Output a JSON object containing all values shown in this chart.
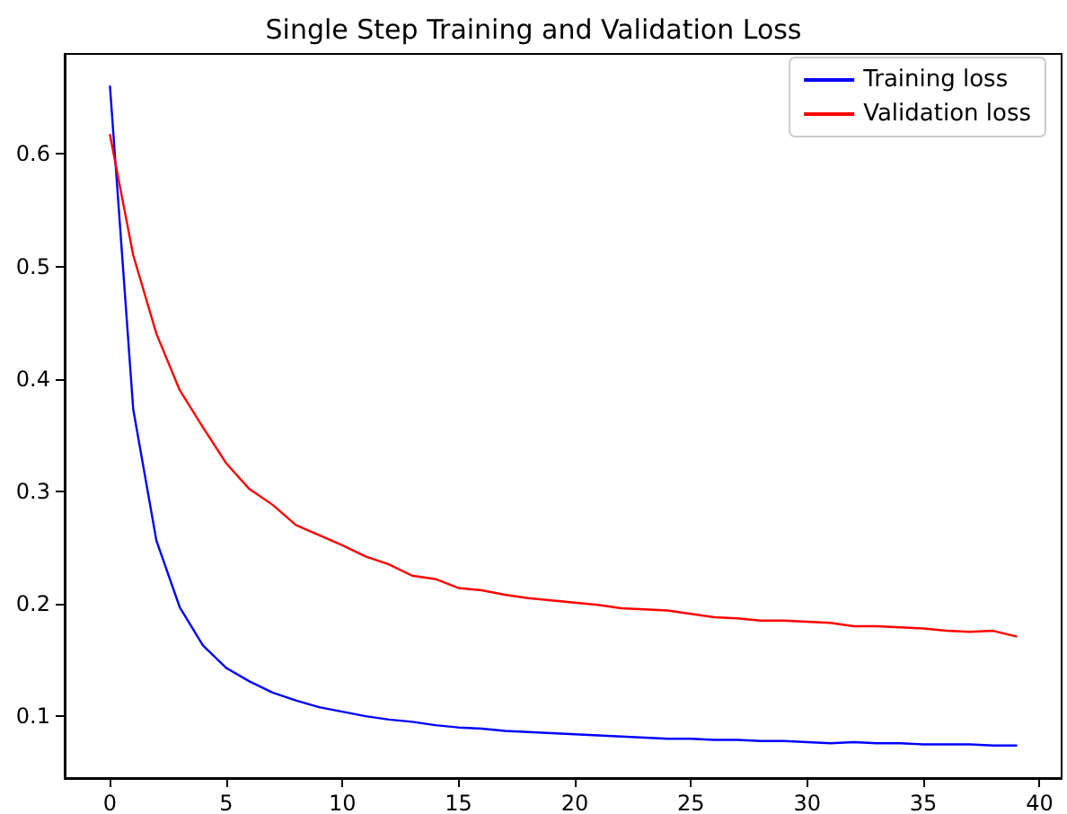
{
  "chart_data": {
    "type": "line",
    "title": "Single Step Training and Validation Loss",
    "x": [
      0,
      1,
      2,
      3,
      4,
      5,
      6,
      7,
      8,
      9,
      10,
      11,
      12,
      13,
      14,
      15,
      16,
      17,
      18,
      19,
      20,
      21,
      22,
      23,
      24,
      25,
      26,
      27,
      28,
      29,
      30,
      31,
      32,
      33,
      34,
      35,
      36,
      37,
      38,
      39
    ],
    "series": [
      {
        "name": "Training loss",
        "color": "#0000ff",
        "values": [
          0.66,
          0.373,
          0.256,
          0.197,
          0.163,
          0.143,
          0.131,
          0.121,
          0.114,
          0.108,
          0.104,
          0.1,
          0.097,
          0.095,
          0.092,
          0.09,
          0.089,
          0.087,
          0.086,
          0.085,
          0.084,
          0.083,
          0.082,
          0.081,
          0.08,
          0.08,
          0.079,
          0.079,
          0.078,
          0.078,
          0.077,
          0.076,
          0.077,
          0.076,
          0.076,
          0.075,
          0.075,
          0.075,
          0.074,
          0.074
        ]
      },
      {
        "name": "Validation loss",
        "color": "#ff0000",
        "values": [
          0.617,
          0.51,
          0.44,
          0.39,
          0.357,
          0.325,
          0.302,
          0.288,
          0.27,
          0.261,
          0.252,
          0.242,
          0.235,
          0.225,
          0.222,
          0.214,
          0.212,
          0.208,
          0.205,
          0.203,
          0.201,
          0.199,
          0.196,
          0.195,
          0.194,
          0.191,
          0.188,
          0.187,
          0.185,
          0.185,
          0.184,
          0.183,
          0.18,
          0.18,
          0.179,
          0.178,
          0.176,
          0.175,
          0.176,
          0.171
        ]
      }
    ],
    "xlim": [
      -1.95,
      40.95
    ],
    "xticks": [
      0,
      5,
      10,
      15,
      20,
      25,
      30,
      35,
      40
    ],
    "ylim": [
      0.045,
      0.689
    ],
    "yticks": [
      0.1,
      0.2,
      0.3,
      0.4,
      0.5,
      0.6
    ],
    "grid": false,
    "legend": "top right",
    "marker": "none",
    "line_style": "solid"
  }
}
